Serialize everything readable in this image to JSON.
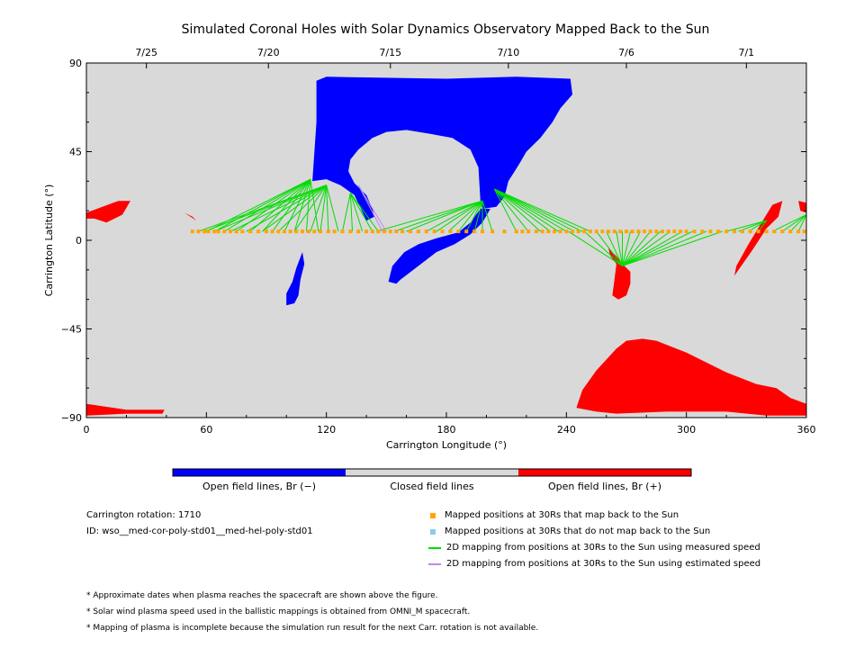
{
  "colors": {
    "closed": "#d9d9d9",
    "open_neg": "#0000ff",
    "open_pos": "#ff0000",
    "mapped_back": "#ffa500",
    "not_mapped": "#87ceeb",
    "measured": "#00dd00",
    "estimated": "#bb88ee"
  },
  "chart_data": {
    "type": "scatter",
    "title": "Simulated Coronal Holes with Solar Dynamics Observatory Mapped Back to the Sun",
    "xlabel": "Carrington Longitude (°)",
    "ylabel": "Carrington Latitude (°)",
    "xlim": [
      0,
      360
    ],
    "ylim": [
      -90,
      90
    ],
    "x_ticks": [
      0,
      60,
      120,
      180,
      240,
      300,
      360
    ],
    "y_ticks": [
      90,
      45,
      0,
      -45,
      -90
    ],
    "y_tick_labels": [
      "90",
      "45",
      "0",
      "−45",
      "−90"
    ],
    "top_axis": {
      "ticks": [
        {
          "lon": 30,
          "label": "7/25"
        },
        {
          "lon": 91,
          "label": "7/20"
        },
        {
          "lon": 152,
          "label": "7/15"
        },
        {
          "lon": 211,
          "label": "7/10"
        },
        {
          "lon": 270,
          "label": "7/6"
        },
        {
          "lon": 330,
          "label": "7/1"
        }
      ]
    },
    "coronal_holes": [
      {
        "polarity": "negative",
        "points": [
          [
            115,
            81
          ],
          [
            120,
            83
          ],
          [
            180,
            82
          ],
          [
            215,
            83
          ],
          [
            242,
            82
          ],
          [
            243,
            74
          ],
          [
            237,
            67
          ],
          [
            233,
            60
          ],
          [
            227,
            52
          ],
          [
            220,
            45
          ],
          [
            216,
            38
          ],
          [
            211,
            30
          ],
          [
            209,
            22
          ],
          [
            205,
            17
          ],
          [
            198,
            16
          ],
          [
            197,
            20
          ],
          [
            196,
            37
          ],
          [
            192,
            46
          ],
          [
            183,
            52
          ],
          [
            172,
            54
          ],
          [
            160,
            56
          ],
          [
            150,
            55
          ],
          [
            143,
            52
          ],
          [
            136,
            46
          ],
          [
            132,
            41
          ],
          [
            131,
            35
          ],
          [
            134,
            29
          ],
          [
            140,
            23
          ],
          [
            143,
            16
          ],
          [
            144,
            12
          ],
          [
            140,
            10
          ],
          [
            134,
            23
          ],
          [
            127,
            28
          ],
          [
            120,
            31
          ],
          [
            113,
            30
          ],
          [
            115,
            60
          ]
        ]
      },
      {
        "polarity": "negative",
        "points": [
          [
            197,
            16
          ],
          [
            202,
            16
          ],
          [
            198,
            9
          ],
          [
            192,
            3
          ],
          [
            184,
            -2
          ],
          [
            175,
            -6
          ],
          [
            166,
            -13
          ],
          [
            157,
            -20
          ],
          [
            155,
            -22
          ],
          [
            151,
            -21
          ],
          [
            153,
            -13
          ],
          [
            159,
            -6
          ],
          [
            166,
            -2
          ],
          [
            175,
            1
          ],
          [
            186,
            4
          ],
          [
            192,
            9
          ]
        ]
      },
      {
        "polarity": "negative",
        "points": [
          [
            108,
            -6
          ],
          [
            109,
            -12
          ],
          [
            107,
            -20
          ],
          [
            106,
            -28
          ],
          [
            104,
            -32
          ],
          [
            100,
            -33
          ],
          [
            100,
            -27
          ],
          [
            103,
            -21
          ],
          [
            105,
            -14
          ]
        ]
      },
      {
        "polarity": "positive",
        "points": [
          [
            0,
            14
          ],
          [
            8,
            17
          ],
          [
            16,
            20
          ],
          [
            22,
            20
          ],
          [
            18,
            13
          ],
          [
            10,
            9
          ],
          [
            4,
            11
          ],
          [
            0,
            11
          ]
        ]
      },
      {
        "polarity": "positive",
        "points": [
          [
            0,
            -83
          ],
          [
            20,
            -86
          ],
          [
            39,
            -86
          ],
          [
            38,
            -88
          ],
          [
            20,
            -88
          ],
          [
            0,
            -89
          ]
        ]
      },
      {
        "polarity": "positive",
        "points": [
          [
            248,
            -76
          ],
          [
            255,
            -66
          ],
          [
            265,
            -55
          ],
          [
            270,
            -51
          ],
          [
            278,
            -50
          ],
          [
            285,
            -51
          ],
          [
            300,
            -57
          ],
          [
            320,
            -67
          ],
          [
            335,
            -73
          ],
          [
            345,
            -75
          ],
          [
            352,
            -80
          ],
          [
            360,
            -83
          ],
          [
            360,
            -89
          ],
          [
            340,
            -89
          ],
          [
            320,
            -87
          ],
          [
            290,
            -87
          ],
          [
            265,
            -88
          ],
          [
            255,
            -87
          ],
          [
            245,
            -85
          ]
        ]
      },
      {
        "polarity": "positive",
        "points": [
          [
            261,
            -4
          ],
          [
            265,
            -8
          ],
          [
            268,
            -12
          ],
          [
            272,
            -16
          ],
          [
            272,
            -22
          ],
          [
            270,
            -28
          ],
          [
            266,
            -30
          ],
          [
            263,
            -28
          ],
          [
            264,
            -20
          ],
          [
            265,
            -12
          ],
          [
            262,
            -8
          ]
        ]
      },
      {
        "polarity": "positive",
        "points": [
          [
            343,
            18
          ],
          [
            348,
            20
          ],
          [
            346,
            12
          ],
          [
            340,
            6
          ],
          [
            333,
            -5
          ],
          [
            324,
            -18
          ],
          [
            325,
            -13
          ],
          [
            331,
            -2
          ],
          [
            337,
            8
          ]
        ]
      },
      {
        "polarity": "positive",
        "points": [
          [
            356,
            20
          ],
          [
            360,
            19
          ],
          [
            360,
            14
          ],
          [
            357,
            15
          ]
        ]
      },
      {
        "polarity": "positive",
        "points": [
          [
            49,
            14
          ],
          [
            52,
            12
          ],
          [
            55,
            10
          ],
          [
            53,
            12
          ]
        ]
      }
    ],
    "footpoints": [
      {
        "lon": 112,
        "lat": 31,
        "targets": [
          60,
          64,
          69,
          75,
          82,
          88,
          93,
          99,
          104,
          110,
          116
        ]
      },
      {
        "lon": 120,
        "lat": 28,
        "targets": [
          56,
          59,
          64,
          72,
          80,
          88,
          96,
          104,
          112,
          117,
          121,
          126
        ]
      },
      {
        "lon": 132,
        "lat": 24,
        "targets": [
          128,
          133,
          138,
          143,
          146
        ]
      },
      {
        "lon": 198,
        "lat": 20,
        "targets": [
          170,
          175,
          181,
          186,
          190,
          194,
          198,
          203,
          160,
          154,
          145
        ]
      },
      {
        "lon": 204,
        "lat": 26,
        "targets": [
          215,
          221,
          227,
          232,
          236,
          240,
          244,
          248,
          252
        ]
      },
      {
        "lon": 268,
        "lat": -13,
        "targets": [
          241,
          249,
          255,
          260,
          265,
          268,
          272,
          277,
          282,
          287,
          292,
          298,
          303,
          310,
          318
        ]
      },
      {
        "lon": 340,
        "lat": 10,
        "targets": [
          320,
          326,
          331,
          336
        ]
      },
      {
        "lon": 360,
        "lat": 13,
        "targets": [
          343,
          348,
          352,
          356
        ]
      }
    ],
    "estimated_lines": [
      {
        "lon": 136,
        "lat": 28,
        "targets": [
          148,
          150
        ]
      }
    ],
    "mapped_positions_lat": 4.5,
    "mapped_positions_lon": [
      53,
      56,
      59,
      61,
      64,
      66,
      69,
      72,
      75,
      78,
      82,
      86,
      90,
      93,
      96,
      99,
      102,
      105,
      108,
      111,
      114,
      117,
      121,
      124,
      128,
      132,
      136,
      140,
      143,
      146,
      149,
      152,
      155,
      158,
      162,
      166,
      170,
      174,
      178,
      182,
      186,
      190,
      194,
      198,
      203,
      209,
      215,
      218,
      221,
      225,
      228,
      231,
      234,
      237,
      240,
      243,
      246,
      249,
      252,
      255,
      258,
      261,
      264,
      267,
      270,
      273,
      276,
      279,
      282,
      285,
      288,
      291,
      294,
      297,
      300,
      304,
      308,
      312,
      316,
      320,
      324,
      328,
      332,
      336,
      340,
      344,
      348,
      352,
      356,
      359
    ],
    "colorbar": {
      "segments": [
        "Open field lines, Br (−)",
        "Closed field lines",
        "Open field lines, Br (+)"
      ]
    }
  },
  "info": {
    "rotation": "Carrington rotation: 1710",
    "id": "ID: wso__med-cor-poly-std01__med-hel-poly-std01"
  },
  "legend": {
    "mapped_back": "Mapped positions at 30Rs that map back to the Sun",
    "not_mapped": "Mapped positions at 30Rs that do not map back to the Sun",
    "measured": "2D mapping from positions at 30Rs to the Sun using measured speed",
    "estimated": "2D mapping from positions at 30Rs to the Sun using estimated speed"
  },
  "notes": [
    "* Approximate dates when plasma reaches the spacecraft are shown above the figure.",
    "* Solar wind plasma speed used in the ballistic mappings is obtained from OMNI_M spacecraft.",
    "* Mapping of plasma is incomplete because the simulation run result for the next Carr. rotation is not available."
  ]
}
